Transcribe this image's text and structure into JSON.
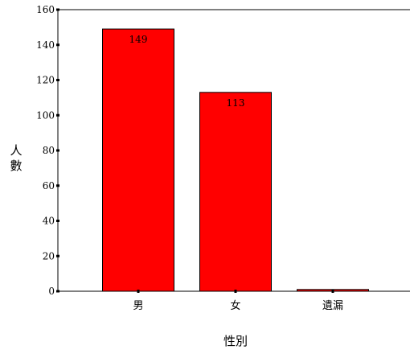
{
  "chart_data": {
    "type": "bar",
    "categories": [
      "男",
      "女",
      "遺漏"
    ],
    "values": [
      149,
      113,
      1
    ],
    "data_labels": [
      "149",
      "113",
      ""
    ],
    "xlabel": "性別",
    "ylabel": "人數",
    "ylim": [
      0,
      160
    ],
    "yticks": [
      0,
      20,
      40,
      60,
      80,
      100,
      120,
      140,
      160
    ],
    "grid": false,
    "legend": "none",
    "colors": {
      "bar_fill": "#ff0000",
      "bar_stroke": "#000000",
      "axis": "#000000"
    }
  }
}
